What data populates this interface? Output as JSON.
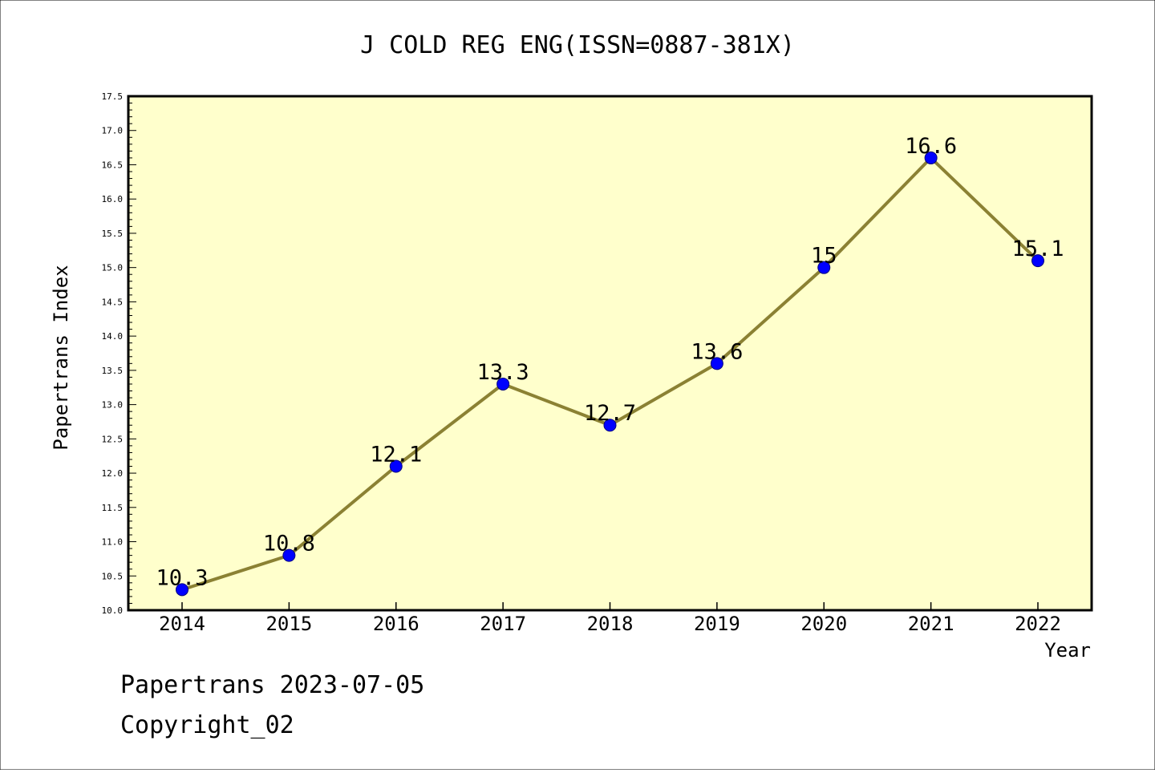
{
  "colors": {
    "background": "#ffffff",
    "plot_background": "#ffffcc",
    "line": "#8b8133",
    "marker_fill": "#0000ff",
    "marker_edge": "#000080",
    "frame": "#000000"
  },
  "footer": {
    "line1": "Papertrans 2023-07-05",
    "line2": "Copyright_02"
  },
  "chart_data": {
    "type": "line",
    "title": "J COLD REG ENG(ISSN=0887-381X)",
    "xlabel": "Year",
    "ylabel": "Papertrans Index",
    "categories": [
      "2014",
      "2015",
      "2016",
      "2017",
      "2018",
      "2019",
      "2020",
      "2021",
      "2022"
    ],
    "values": [
      10.3,
      10.8,
      12.1,
      13.3,
      12.7,
      13.6,
      15.0,
      16.6,
      15.1
    ],
    "data_labels": [
      "10.3",
      "10.8",
      "12.1",
      "13.3",
      "12.7",
      "13.6",
      "15",
      "16.6",
      "15.1"
    ],
    "ylim": [
      10.0,
      17.5
    ],
    "yticks": [
      "10.0",
      "10.5",
      "11.0",
      "11.5",
      "12.0",
      "12.5",
      "13.0",
      "13.5",
      "14.0",
      "14.5",
      "15.0",
      "15.5",
      "16.0",
      "16.5",
      "17.0",
      "17.5"
    ],
    "grid": false,
    "legend": "none",
    "marker": "circle"
  }
}
